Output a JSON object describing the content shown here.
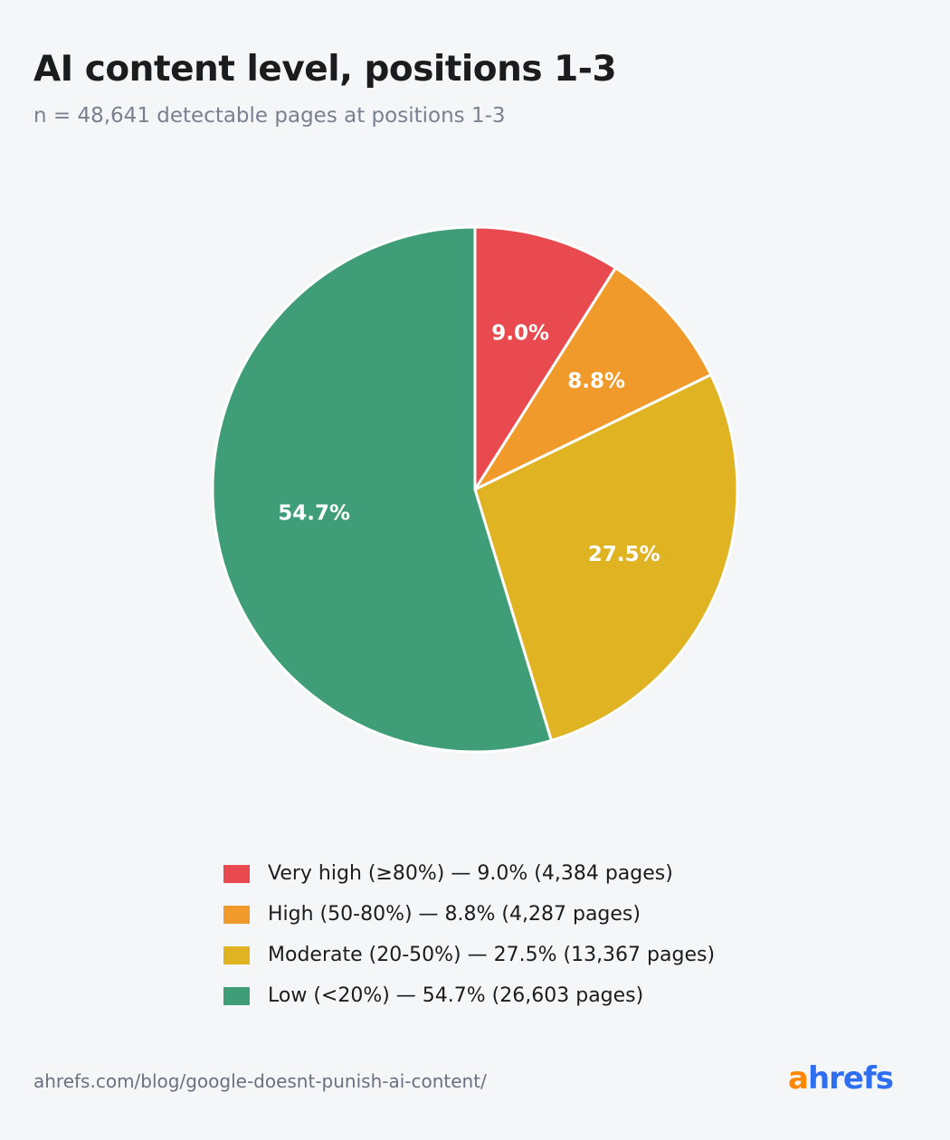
{
  "header": {
    "title": "AI content level, positions 1-3",
    "subtitle": "n = 48,641 detectable pages at positions 1-3"
  },
  "chart_data": {
    "type": "pie",
    "title": "AI content level, positions 1-3",
    "subtitle": "n = 48,641 detectable pages at positions 1-3",
    "legend_position": "bottom",
    "slices": [
      {
        "name": "Very high (≥80%)",
        "value": 9.0,
        "label": "9.0%",
        "pages": 4384,
        "color": "#e84a4f",
        "legend_text": "Very high (≥80%) — 9.0% (4,384 pages)"
      },
      {
        "name": "High (50-80%)",
        "value": 8.8,
        "label": "8.8%",
        "pages": 4287,
        "color": "#f19a2c",
        "legend_text": "High (50-80%) — 8.8% (4,287 pages)"
      },
      {
        "name": "Moderate (20-50%)",
        "value": 27.5,
        "label": "27.5%",
        "pages": 13367,
        "color": "#dfb321",
        "legend_text": "Moderate (20-50%) — 27.5% (13,367 pages)"
      },
      {
        "name": "Low (<20%)",
        "value": 54.7,
        "label": "54.7%",
        "pages": 26603,
        "color": "#3f9d78",
        "legend_text": "Low (<20%) — 54.7% (26,603 pages)"
      }
    ]
  },
  "footer": {
    "source": "ahrefs.com/blog/google-doesnt-punish-ai-content/",
    "logo_a": "a",
    "logo_rest": "hrefs",
    "logo_colors": {
      "a": "#ff8800",
      "rest": "#2e6ef0"
    }
  }
}
